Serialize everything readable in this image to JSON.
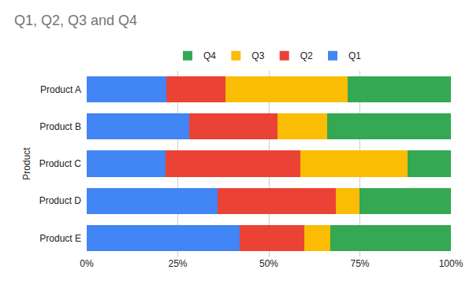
{
  "chart_data": {
    "type": "bar",
    "title": "Q1, Q2, Q3 and Q4",
    "y_label": "Product",
    "orientation": "horizontal",
    "stacked": true,
    "grid": true,
    "legend": "top",
    "categories": [
      "Product A",
      "Product B",
      "Product C",
      "Product D",
      "Product E"
    ],
    "series": [
      {
        "name": "Q1",
        "color": "#4285f4",
        "values": [
          21.9,
          28.1,
          21.7,
          36.0,
          41.9
        ]
      },
      {
        "name": "Q2",
        "color": "#ea4335",
        "values": [
          16.2,
          24.2,
          37.0,
          32.3,
          17.9
        ]
      },
      {
        "name": "Q3",
        "color": "#fbbc04",
        "values": [
          33.6,
          13.7,
          29.4,
          6.6,
          7.0
        ]
      },
      {
        "name": "Q4",
        "color": "#34a853",
        "values": [
          28.3,
          34.0,
          11.9,
          25.1,
          33.2
        ]
      }
    ],
    "xlim": [
      0,
      100
    ],
    "xticks": [
      {
        "value": 0,
        "label": "0%"
      },
      {
        "value": 25,
        "label": "25%"
      },
      {
        "value": 50,
        "label": "50%"
      },
      {
        "value": 75,
        "label": "75%"
      },
      {
        "value": 100,
        "label": "100%"
      }
    ]
  }
}
